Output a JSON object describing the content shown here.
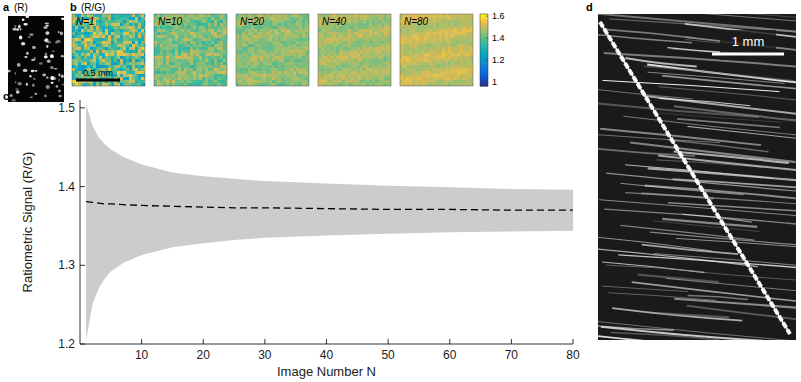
{
  "panel_a": {
    "letter": "a",
    "label": "(R)"
  },
  "panel_b": {
    "letter": "b",
    "label": "(R/G)",
    "scale_bar": "0.5 mm",
    "images": [
      {
        "label": "N=1",
        "mean": 1.4
      },
      {
        "label": "N=10",
        "mean": 1.43
      },
      {
        "label": "N=20",
        "mean": 1.45
      },
      {
        "label": "N=40",
        "mean": 1.47
      },
      {
        "label": "N=80",
        "mean": 1.5
      }
    ],
    "colorbar": {
      "range": [
        0.96,
        1.62
      ],
      "ticks": [
        1,
        1.2,
        1.4,
        1.6
      ]
    }
  },
  "chart_data": {
    "type": "line",
    "label": "c",
    "x_label": "Image Number N",
    "y_label": "Ratiometric Signal (R/G)",
    "x": [
      1,
      2,
      3,
      4,
      5,
      7,
      10,
      15,
      20,
      25,
      30,
      40,
      50,
      60,
      70,
      80
    ],
    "series": [
      {
        "type": "line",
        "line_style": "dashed",
        "color": "#000000",
        "values": [
          1.381,
          1.38,
          1.379,
          1.378,
          1.378,
          1.377,
          1.376,
          1.375,
          1.374,
          1.373,
          1.373,
          1.372,
          1.371,
          1.371,
          1.37,
          1.37
        ]
      },
      {
        "type": "area",
        "color": "#cccccc",
        "values": [
          1.505,
          1.478,
          1.463,
          1.454,
          1.447,
          1.438,
          1.428,
          1.418,
          1.413,
          1.41,
          1.407,
          1.404,
          1.401,
          1.399,
          1.397,
          1.396
        ],
        "lower": [
          1.205,
          1.25,
          1.27,
          1.283,
          1.292,
          1.303,
          1.313,
          1.323,
          1.328,
          1.332,
          1.335,
          1.338,
          1.34,
          1.342,
          1.343,
          1.344
        ]
      }
    ],
    "xlim": [
      0,
      80
    ],
    "ylim": [
      1.2,
      1.51
    ],
    "xticks": [
      10,
      20,
      30,
      40,
      50,
      60,
      70,
      80
    ],
    "yticks": [
      1.2,
      1.3,
      1.4,
      1.5
    ],
    "grid": false
  },
  "panel_d": {
    "letter": "d",
    "scale_bar": "1 mm"
  }
}
